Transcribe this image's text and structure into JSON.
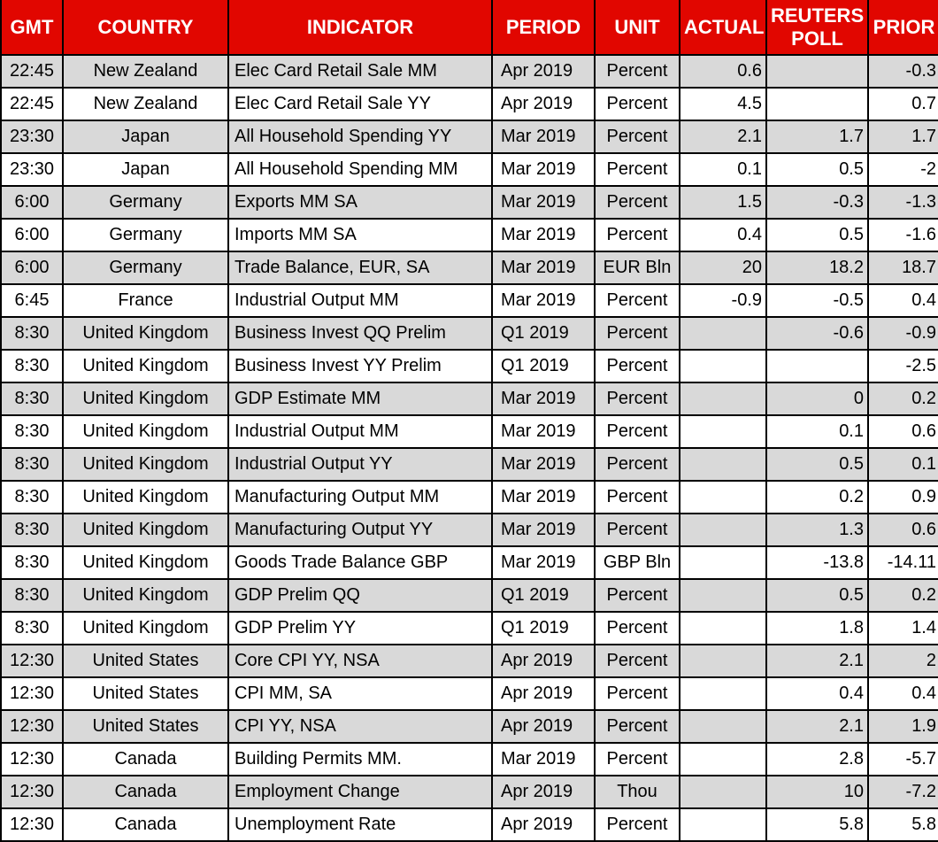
{
  "colors": {
    "header_bg": "#e10600",
    "header_text": "#ffffff",
    "stripe_bg": "#d9d9d9",
    "row_bg": "#ffffff",
    "border": "#000000"
  },
  "table": {
    "columns": [
      {
        "key": "gmt",
        "label": "GMT"
      },
      {
        "key": "country",
        "label": "COUNTRY"
      },
      {
        "key": "indicator",
        "label": "INDICATOR"
      },
      {
        "key": "period",
        "label": "PERIOD"
      },
      {
        "key": "unit",
        "label": "UNIT"
      },
      {
        "key": "actual",
        "label": "ACTUAL"
      },
      {
        "key": "poll",
        "label": "REUTERS POLL"
      },
      {
        "key": "prior",
        "label": "PRIOR"
      }
    ],
    "rows": [
      {
        "gmt": "22:45",
        "country": "New Zealand",
        "indicator": "Elec Card Retail Sale MM",
        "period": "Apr 2019",
        "unit": "Percent",
        "actual": "0.6",
        "poll": "",
        "prior": "-0.3"
      },
      {
        "gmt": "22:45",
        "country": "New Zealand",
        "indicator": "Elec Card Retail Sale YY",
        "period": "Apr 2019",
        "unit": "Percent",
        "actual": "4.5",
        "poll": "",
        "prior": "0.7"
      },
      {
        "gmt": "23:30",
        "country": "Japan",
        "indicator": "All Household Spending YY",
        "period": "Mar 2019",
        "unit": "Percent",
        "actual": "2.1",
        "poll": "1.7",
        "prior": "1.7"
      },
      {
        "gmt": "23:30",
        "country": "Japan",
        "indicator": "All Household Spending MM",
        "period": "Mar 2019",
        "unit": "Percent",
        "actual": "0.1",
        "poll": "0.5",
        "prior": "-2"
      },
      {
        "gmt": "6:00",
        "country": "Germany",
        "indicator": "Exports MM SA",
        "period": "Mar 2019",
        "unit": "Percent",
        "actual": "1.5",
        "poll": "-0.3",
        "prior": "-1.3"
      },
      {
        "gmt": "6:00",
        "country": "Germany",
        "indicator": "Imports MM SA",
        "period": "Mar 2019",
        "unit": "Percent",
        "actual": "0.4",
        "poll": "0.5",
        "prior": "-1.6"
      },
      {
        "gmt": "6:00",
        "country": "Germany",
        "indicator": "Trade Balance, EUR, SA",
        "period": "Mar 2019",
        "unit": "EUR Bln",
        "actual": "20",
        "poll": "18.2",
        "prior": "18.7"
      },
      {
        "gmt": "6:45",
        "country": "France",
        "indicator": "Industrial Output MM",
        "period": "Mar 2019",
        "unit": "Percent",
        "actual": "-0.9",
        "poll": "-0.5",
        "prior": "0.4"
      },
      {
        "gmt": "8:30",
        "country": "United Kingdom",
        "indicator": "Business Invest QQ Prelim",
        "period": "Q1 2019",
        "unit": "Percent",
        "actual": "",
        "poll": "-0.6",
        "prior": "-0.9"
      },
      {
        "gmt": "8:30",
        "country": "United Kingdom",
        "indicator": "Business Invest YY Prelim",
        "period": "Q1 2019",
        "unit": "Percent",
        "actual": "",
        "poll": "",
        "prior": "-2.5"
      },
      {
        "gmt": "8:30",
        "country": "United Kingdom",
        "indicator": "GDP Estimate MM",
        "period": "Mar 2019",
        "unit": "Percent",
        "actual": "",
        "poll": "0",
        "prior": "0.2"
      },
      {
        "gmt": "8:30",
        "country": "United Kingdom",
        "indicator": "Industrial Output MM",
        "period": "Mar 2019",
        "unit": "Percent",
        "actual": "",
        "poll": "0.1",
        "prior": "0.6"
      },
      {
        "gmt": "8:30",
        "country": "United Kingdom",
        "indicator": "Industrial Output YY",
        "period": "Mar 2019",
        "unit": "Percent",
        "actual": "",
        "poll": "0.5",
        "prior": "0.1"
      },
      {
        "gmt": "8:30",
        "country": "United Kingdom",
        "indicator": "Manufacturing Output MM",
        "period": "Mar 2019",
        "unit": "Percent",
        "actual": "",
        "poll": "0.2",
        "prior": "0.9"
      },
      {
        "gmt": "8:30",
        "country": "United Kingdom",
        "indicator": "Manufacturing Output YY",
        "period": "Mar 2019",
        "unit": "Percent",
        "actual": "",
        "poll": "1.3",
        "prior": "0.6"
      },
      {
        "gmt": "8:30",
        "country": "United Kingdom",
        "indicator": "Goods Trade Balance GBP",
        "period": "Mar 2019",
        "unit": "GBP Bln",
        "actual": "",
        "poll": "-13.8",
        "prior": "-14.11"
      },
      {
        "gmt": "8:30",
        "country": "United Kingdom",
        "indicator": "GDP Prelim QQ",
        "period": "Q1 2019",
        "unit": "Percent",
        "actual": "",
        "poll": "0.5",
        "prior": "0.2"
      },
      {
        "gmt": "8:30",
        "country": "United Kingdom",
        "indicator": "GDP Prelim YY",
        "period": "Q1 2019",
        "unit": "Percent",
        "actual": "",
        "poll": "1.8",
        "prior": "1.4"
      },
      {
        "gmt": "12:30",
        "country": "United States",
        "indicator": "Core CPI YY, NSA",
        "period": "Apr 2019",
        "unit": "Percent",
        "actual": "",
        "poll": "2.1",
        "prior": "2"
      },
      {
        "gmt": "12:30",
        "country": "United States",
        "indicator": "CPI MM, SA",
        "period": "Apr 2019",
        "unit": "Percent",
        "actual": "",
        "poll": "0.4",
        "prior": "0.4"
      },
      {
        "gmt": "12:30",
        "country": "United States",
        "indicator": "CPI YY, NSA",
        "period": "Apr 2019",
        "unit": "Percent",
        "actual": "",
        "poll": "2.1",
        "prior": "1.9"
      },
      {
        "gmt": "12:30",
        "country": "Canada",
        "indicator": "Building Permits MM.",
        "period": "Mar 2019",
        "unit": "Percent",
        "actual": "",
        "poll": "2.8",
        "prior": "-5.7"
      },
      {
        "gmt": "12:30",
        "country": "Canada",
        "indicator": "Employment Change",
        "period": "Apr 2019",
        "unit": "Thou",
        "actual": "",
        "poll": "10",
        "prior": "-7.2"
      },
      {
        "gmt": "12:30",
        "country": "Canada",
        "indicator": "Unemployment Rate",
        "period": "Apr 2019",
        "unit": "Percent",
        "actual": "",
        "poll": "5.8",
        "prior": "5.8"
      }
    ]
  }
}
